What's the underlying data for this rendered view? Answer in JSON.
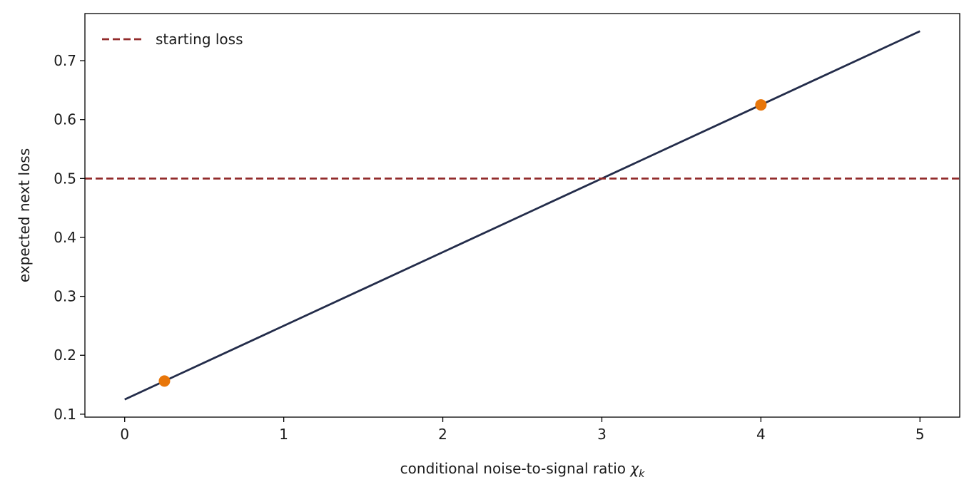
{
  "chart_data": {
    "type": "line",
    "title": "",
    "xlabel": "conditional noise-to-signal ratio",
    "xlabel_symbol": "χ",
    "xlabel_subscript": "k",
    "ylabel": "expected next loss",
    "xlim": [
      -0.25,
      5.25
    ],
    "ylim": [
      0.095,
      0.78
    ],
    "xticks": [
      0,
      1,
      2,
      3,
      4,
      5
    ],
    "xtick_labels": [
      "0",
      "1",
      "2",
      "3",
      "4",
      "5"
    ],
    "yticks": [
      0.1,
      0.2,
      0.3,
      0.4,
      0.5,
      0.6,
      0.7
    ],
    "ytick_labels": [
      "0.1",
      "0.2",
      "0.3",
      "0.4",
      "0.5",
      "0.6",
      "0.7"
    ],
    "grid": false,
    "legend_position": "top-left",
    "series": [
      {
        "kind": "line",
        "color": "#232c4a",
        "x": [
          0,
          5
        ],
        "y": [
          0.125,
          0.75
        ]
      },
      {
        "kind": "hline",
        "name": "starting loss",
        "color": "#922b2b",
        "style": "dashed",
        "y": 0.5
      },
      {
        "kind": "points",
        "color": "#e8760a",
        "x": [
          0.25,
          4
        ],
        "y": [
          0.15625,
          0.625
        ]
      }
    ]
  }
}
